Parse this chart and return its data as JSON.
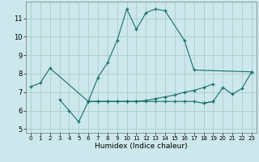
{
  "xlabel": "Humidex (Indice chaleur)",
  "background_color": "#cce8ec",
  "grid_color": "#aacccc",
  "line_color": "#1a6e68",
  "xlim": [
    -0.5,
    23.5
  ],
  "ylim": [
    4.8,
    11.9
  ],
  "xticks": [
    0,
    1,
    2,
    3,
    4,
    5,
    6,
    7,
    8,
    9,
    10,
    11,
    12,
    13,
    14,
    15,
    16,
    17,
    18,
    19,
    20,
    21,
    22,
    23
  ],
  "yticks": [
    5,
    6,
    7,
    8,
    9,
    10,
    11
  ],
  "series": [
    {
      "x": [
        0,
        1,
        2,
        6,
        7,
        8,
        9,
        10,
        11,
        12,
        13,
        14,
        16,
        17,
        23
      ],
      "y": [
        7.3,
        7.5,
        8.3,
        6.5,
        7.8,
        8.6,
        9.8,
        11.5,
        10.4,
        11.3,
        11.5,
        11.4,
        9.8,
        8.2,
        8.1
      ]
    },
    {
      "x": [
        3,
        4,
        5,
        6,
        7,
        8,
        9,
        10,
        11,
        12,
        13,
        14,
        15,
        16,
        17,
        18,
        19
      ],
      "y": [
        6.6,
        6.0,
        5.4,
        6.5,
        6.5,
        6.5,
        6.5,
        6.5,
        6.5,
        6.5,
        6.5,
        6.5,
        6.5,
        6.5,
        6.5,
        6.4,
        6.5
      ]
    },
    {
      "x": [
        6,
        7,
        8,
        9,
        10,
        11,
        12,
        13,
        14,
        15,
        16,
        17,
        18,
        19
      ],
      "y": [
        6.5,
        6.5,
        6.5,
        6.5,
        6.5,
        6.5,
        6.55,
        6.65,
        6.75,
        6.85,
        7.0,
        7.1,
        7.25,
        7.45
      ]
    },
    {
      "x": [
        18,
        19,
        20,
        21,
        22,
        23
      ],
      "y": [
        6.4,
        6.5,
        7.25,
        6.9,
        7.2,
        8.1
      ]
    }
  ]
}
